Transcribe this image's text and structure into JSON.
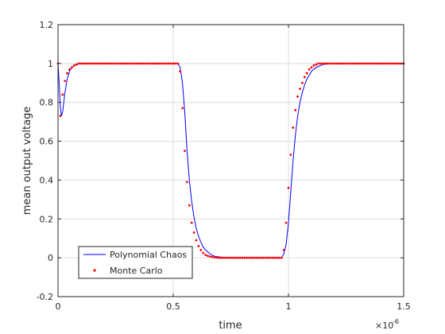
{
  "chart_data": {
    "type": "line",
    "title": "",
    "xlabel": "time",
    "ylabel": "mean output voltage",
    "x_exponent_label": "×10",
    "x_exponent_power": "-6",
    "xlim": [
      0,
      1.5
    ],
    "ylim": [
      -0.2,
      1.2
    ],
    "grid": true,
    "legend_position": "bottom-left",
    "x_ticks": [
      0,
      0.5,
      1,
      1.5
    ],
    "x_tick_labels": [
      "0",
      "0.5",
      "1",
      "1.5"
    ],
    "y_ticks": [
      -0.2,
      0,
      0.2,
      0.4,
      0.6,
      0.8,
      1,
      1.2
    ],
    "y_tick_labels": [
      "-0.2",
      "0",
      "0.2",
      "0.4",
      "0.6",
      "0.8",
      "1",
      "1.2"
    ],
    "series": [
      {
        "name": "Polynomial Chaos",
        "style": "line",
        "color": "#0000ff",
        "x": [
          0,
          0.005,
          0.01,
          0.015,
          0.02,
          0.03,
          0.04,
          0.05,
          0.06,
          0.07,
          0.08,
          0.1,
          0.12,
          0.15,
          0.3,
          0.52,
          0.53,
          0.54,
          0.55,
          0.56,
          0.57,
          0.58,
          0.59,
          0.6,
          0.61,
          0.62,
          0.63,
          0.64,
          0.65,
          0.66,
          0.67,
          0.68,
          0.7,
          0.72,
          0.75,
          0.8,
          0.9,
          0.97,
          0.98,
          0.99,
          1.0,
          1.01,
          1.02,
          1.03,
          1.04,
          1.05,
          1.06,
          1.07,
          1.08,
          1.09,
          1.1,
          1.11,
          1.12,
          1.13,
          1.14,
          1.15,
          1.17,
          1.19,
          1.22,
          1.3,
          1.5
        ],
        "y": [
          1.0,
          0.9,
          0.78,
          0.73,
          0.75,
          0.85,
          0.92,
          0.96,
          0.98,
          0.99,
          0.995,
          1.0,
          1.0,
          1.0,
          1.0,
          1.0,
          0.98,
          0.9,
          0.75,
          0.55,
          0.4,
          0.29,
          0.21,
          0.15,
          0.11,
          0.08,
          0.055,
          0.04,
          0.03,
          0.02,
          0.013,
          0.008,
          0.004,
          0.002,
          0.0,
          0.0,
          0.0,
          0.0,
          0.02,
          0.07,
          0.18,
          0.34,
          0.5,
          0.63,
          0.73,
          0.8,
          0.85,
          0.89,
          0.92,
          0.94,
          0.96,
          0.97,
          0.98,
          0.985,
          0.99,
          0.995,
          0.998,
          1.0,
          1.0,
          1.0,
          1.0
        ]
      },
      {
        "name": "Monte Carlo",
        "style": "markers",
        "color": "#ff0000",
        "x": [
          0.0,
          0.01,
          0.02,
          0.03,
          0.04,
          0.05,
          0.06,
          0.07,
          0.08,
          0.09,
          0.1,
          0.11,
          0.12,
          0.13,
          0.14,
          0.15,
          0.16,
          0.17,
          0.18,
          0.19,
          0.2,
          0.21,
          0.22,
          0.23,
          0.24,
          0.25,
          0.26,
          0.27,
          0.28,
          0.29,
          0.3,
          0.31,
          0.32,
          0.33,
          0.34,
          0.35,
          0.36,
          0.37,
          0.38,
          0.39,
          0.4,
          0.41,
          0.42,
          0.43,
          0.44,
          0.45,
          0.46,
          0.47,
          0.48,
          0.49,
          0.5,
          0.51,
          0.52,
          0.53,
          0.54,
          0.55,
          0.56,
          0.57,
          0.58,
          0.59,
          0.6,
          0.61,
          0.62,
          0.63,
          0.64,
          0.65,
          0.66,
          0.67,
          0.68,
          0.69,
          0.7,
          0.71,
          0.72,
          0.73,
          0.74,
          0.75,
          0.76,
          0.77,
          0.78,
          0.79,
          0.8,
          0.81,
          0.82,
          0.83,
          0.84,
          0.85,
          0.86,
          0.87,
          0.88,
          0.89,
          0.9,
          0.91,
          0.92,
          0.93,
          0.94,
          0.95,
          0.96,
          0.97,
          0.98,
          0.99,
          1.0,
          1.01,
          1.02,
          1.03,
          1.04,
          1.05,
          1.06,
          1.07,
          1.08,
          1.09,
          1.1,
          1.11,
          1.12,
          1.13,
          1.14,
          1.15,
          1.16,
          1.17,
          1.18,
          1.19,
          1.2,
          1.21,
          1.22,
          1.23,
          1.24,
          1.25,
          1.26,
          1.27,
          1.28,
          1.29,
          1.3,
          1.31,
          1.32,
          1.33,
          1.34,
          1.35,
          1.36,
          1.37,
          1.38,
          1.39,
          1.4,
          1.41,
          1.42,
          1.43,
          1.44,
          1.45,
          1.46,
          1.47,
          1.48,
          1.49,
          1.5
        ],
        "y": [
          1.0,
          0.73,
          0.84,
          0.91,
          0.95,
          0.97,
          0.98,
          0.99,
          0.995,
          1.0,
          1.0,
          1.0,
          1.0,
          1.0,
          1.0,
          1.0,
          1.0,
          1.0,
          1.0,
          1.0,
          1.0,
          1.0,
          1.0,
          1.0,
          1.0,
          1.0,
          1.0,
          1.0,
          1.0,
          1.0,
          1.0,
          1.0,
          1.0,
          1.0,
          1.0,
          1.0,
          1.0,
          1.0,
          1.0,
          1.0,
          1.0,
          1.0,
          1.0,
          1.0,
          1.0,
          1.0,
          1.0,
          1.0,
          1.0,
          1.0,
          1.0,
          1.0,
          1.0,
          0.96,
          0.77,
          0.55,
          0.39,
          0.27,
          0.18,
          0.13,
          0.09,
          0.06,
          0.04,
          0.025,
          0.015,
          0.01,
          0.006,
          0.004,
          0.002,
          0.001,
          0.0,
          0.0,
          0.0,
          0.0,
          0.0,
          0.0,
          0.0,
          0.0,
          0.0,
          0.0,
          0.0,
          0.0,
          0.0,
          0.0,
          0.0,
          0.0,
          0.0,
          0.0,
          0.0,
          0.0,
          0.0,
          0.0,
          0.0,
          0.0,
          0.0,
          0.0,
          0.0,
          0.0,
          0.04,
          0.18,
          0.36,
          0.53,
          0.67,
          0.76,
          0.83,
          0.87,
          0.9,
          0.93,
          0.95,
          0.97,
          0.98,
          0.99,
          0.995,
          1.0,
          1.0,
          1.0,
          1.0,
          1.0,
          1.0,
          1.0,
          1.0,
          1.0,
          1.0,
          1.0,
          1.0,
          1.0,
          1.0,
          1.0,
          1.0,
          1.0,
          1.0,
          1.0,
          1.0,
          1.0,
          1.0,
          1.0,
          1.0,
          1.0,
          1.0,
          1.0,
          1.0,
          1.0,
          1.0,
          1.0,
          1.0,
          1.0,
          1.0,
          1.0,
          1.0,
          1.0,
          1.0
        ]
      }
    ]
  }
}
